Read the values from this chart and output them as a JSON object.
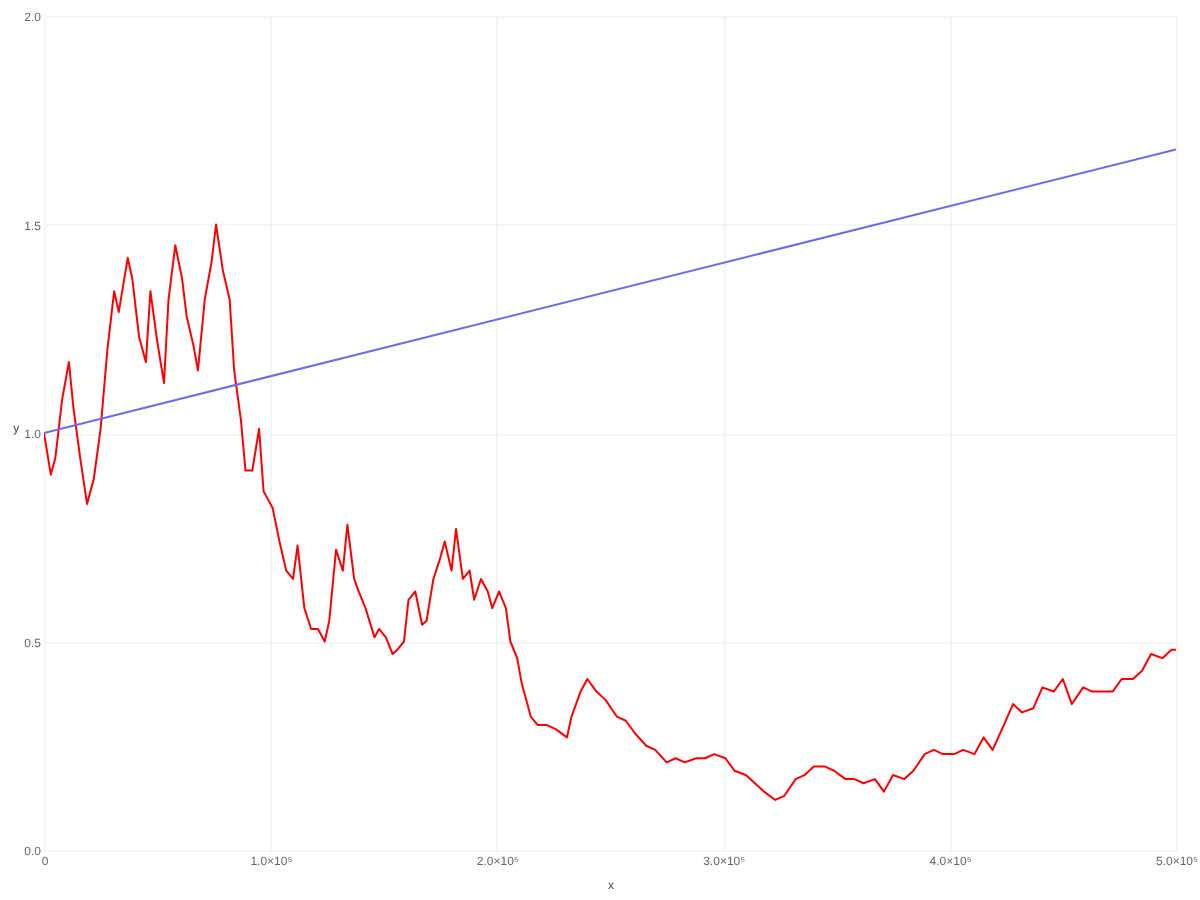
{
  "chart_data": {
    "type": "line",
    "xlabel": "x",
    "ylabel": "y",
    "xlim": [
      0,
      500000
    ],
    "ylim": [
      0,
      2
    ],
    "xticks": [
      0,
      {
        "value": 100000,
        "label": "1.0×10⁵"
      },
      {
        "value": 200000,
        "label": "2.0×10⁵"
      },
      {
        "value": 300000,
        "label": "3.0×10⁵"
      },
      {
        "value": 400000,
        "label": "4.0×10⁵"
      },
      {
        "value": 500000,
        "label": "5.0×10⁵"
      }
    ],
    "yticks": [
      {
        "value": 0,
        "label": "0.0"
      },
      {
        "value": 0.5,
        "label": "0.5"
      },
      {
        "value": 1,
        "label": "1.0"
      },
      {
        "value": 1.5,
        "label": "1.5"
      },
      {
        "value": 2,
        "label": "2.0"
      }
    ],
    "grid": true,
    "series": [
      {
        "color": "#ff0000",
        "x": [
          0,
          3000,
          5000,
          8000,
          11000,
          13000,
          16000,
          19000,
          22000,
          25000,
          28000,
          31000,
          33000,
          37000,
          39000,
          42000,
          45000,
          47000,
          50000,
          53000,
          55000,
          58000,
          61000,
          63000,
          66000,
          68000,
          71000,
          74000,
          76000,
          79000,
          82000,
          84000,
          87000,
          89000,
          92000,
          95000,
          97000,
          101000,
          104000,
          107000,
          110000,
          112000,
          115000,
          118000,
          121000,
          124000,
          126000,
          129000,
          132000,
          134000,
          137000,
          139000,
          142000,
          146000,
          148000,
          151000,
          154000,
          156000,
          159000,
          161000,
          164000,
          167000,
          169000,
          172000,
          175000,
          177000,
          180000,
          182000,
          185000,
          188000,
          190000,
          193000,
          196000,
          198000,
          201000,
          204000,
          206000,
          209000,
          211000,
          215000,
          218000,
          222000,
          226000,
          231000,
          233000,
          237000,
          240000,
          244000,
          248000,
          253000,
          257000,
          261000,
          266000,
          270000,
          275000,
          279000,
          283000,
          288000,
          292000,
          296000,
          301000,
          305000,
          310000,
          314000,
          318000,
          323000,
          327000,
          332000,
          336000,
          340000,
          345000,
          349000,
          354000,
          358000,
          362000,
          367000,
          371000,
          375000,
          380000,
          384000,
          389000,
          393000,
          397000,
          402000,
          406000,
          411000,
          415000,
          419000,
          424000,
          428000,
          432000,
          437000,
          441000,
          446000,
          450000,
          454000,
          459000,
          463000,
          468000,
          472000,
          476000,
          481000,
          485000,
          489000,
          494000,
          498000,
          500000
        ],
        "values": [
          1.0,
          0.9,
          0.94,
          1.08,
          1.17,
          1.06,
          0.94,
          0.83,
          0.89,
          1.01,
          1.2,
          1.34,
          1.29,
          1.42,
          1.37,
          1.23,
          1.17,
          1.34,
          1.22,
          1.12,
          1.32,
          1.45,
          1.37,
          1.28,
          1.21,
          1.15,
          1.32,
          1.41,
          1.5,
          1.39,
          1.32,
          1.15,
          1.03,
          0.91,
          0.91,
          1.01,
          0.86,
          0.82,
          0.74,
          0.67,
          0.65,
          0.73,
          0.58,
          0.53,
          0.53,
          0.5,
          0.55,
          0.72,
          0.67,
          0.78,
          0.65,
          0.62,
          0.58,
          0.51,
          0.53,
          0.51,
          0.47,
          0.48,
          0.5,
          0.6,
          0.62,
          0.54,
          0.55,
          0.65,
          0.7,
          0.74,
          0.67,
          0.77,
          0.65,
          0.67,
          0.6,
          0.65,
          0.62,
          0.58,
          0.62,
          0.58,
          0.5,
          0.46,
          0.4,
          0.32,
          0.3,
          0.3,
          0.29,
          0.27,
          0.32,
          0.38,
          0.41,
          0.38,
          0.36,
          0.32,
          0.31,
          0.28,
          0.25,
          0.24,
          0.21,
          0.22,
          0.21,
          0.22,
          0.22,
          0.23,
          0.22,
          0.19,
          0.18,
          0.16,
          0.14,
          0.12,
          0.13,
          0.17,
          0.18,
          0.2,
          0.2,
          0.19,
          0.17,
          0.17,
          0.16,
          0.17,
          0.14,
          0.18,
          0.17,
          0.19,
          0.23,
          0.24,
          0.23,
          0.23,
          0.24,
          0.23,
          0.27,
          0.24,
          0.3,
          0.35,
          0.33,
          0.34,
          0.39,
          0.38,
          0.41,
          0.35,
          0.39,
          0.38,
          0.38,
          0.38,
          0.41,
          0.41,
          0.43,
          0.47,
          0.46,
          0.48,
          0.48
        ]
      },
      {
        "color": "#6b6bf0",
        "x": [
          0,
          500000
        ],
        "values": [
          1.0,
          1.68
        ]
      }
    ]
  }
}
